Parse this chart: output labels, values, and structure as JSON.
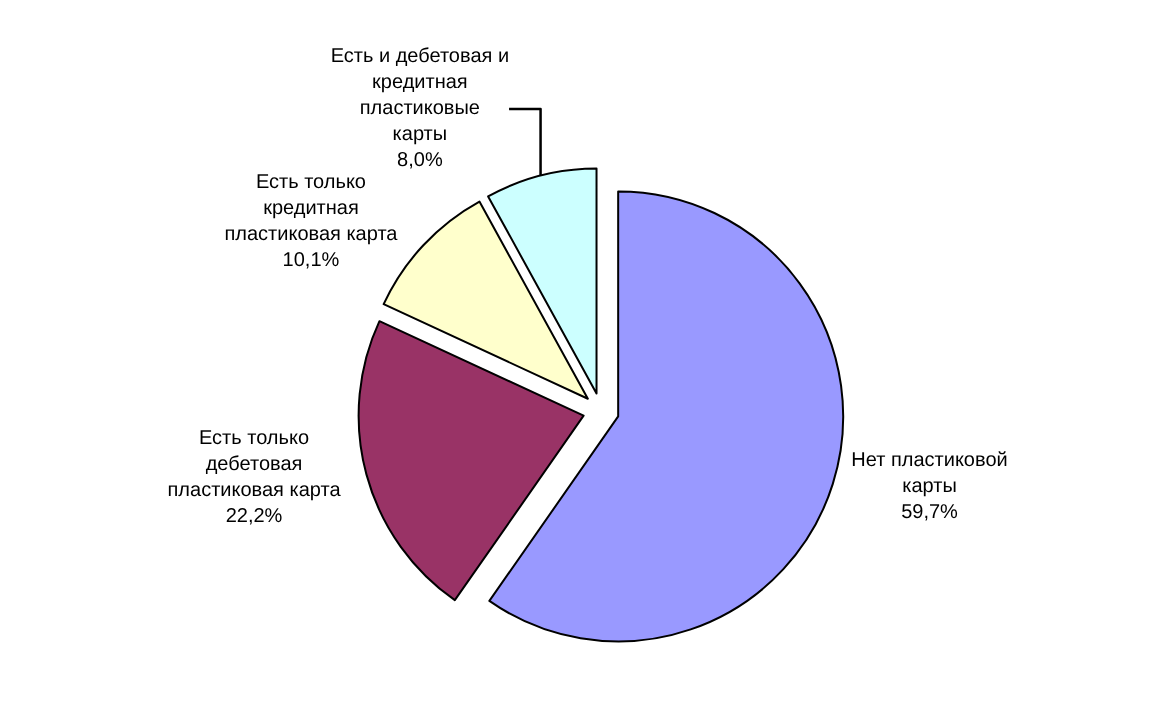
{
  "chart_data": {
    "type": "pie",
    "categories": [
      "Нет пластиковой\nкарты",
      "Есть только\nдебетовая\nпластиковая карта",
      "Есть только\nкредитная\nпластиковая карта",
      "Есть и дебетовая и\nкредитная\nпластиковые\nкарты"
    ],
    "values": [
      59.7,
      22.2,
      10.1,
      8.0
    ],
    "value_labels": [
      "59,7%",
      "22,2%",
      "10,1%",
      "8,0%"
    ],
    "colors": [
      "#9999ff",
      "#993366",
      "#ffffcc",
      "#ccffff"
    ],
    "legend": false
  }
}
